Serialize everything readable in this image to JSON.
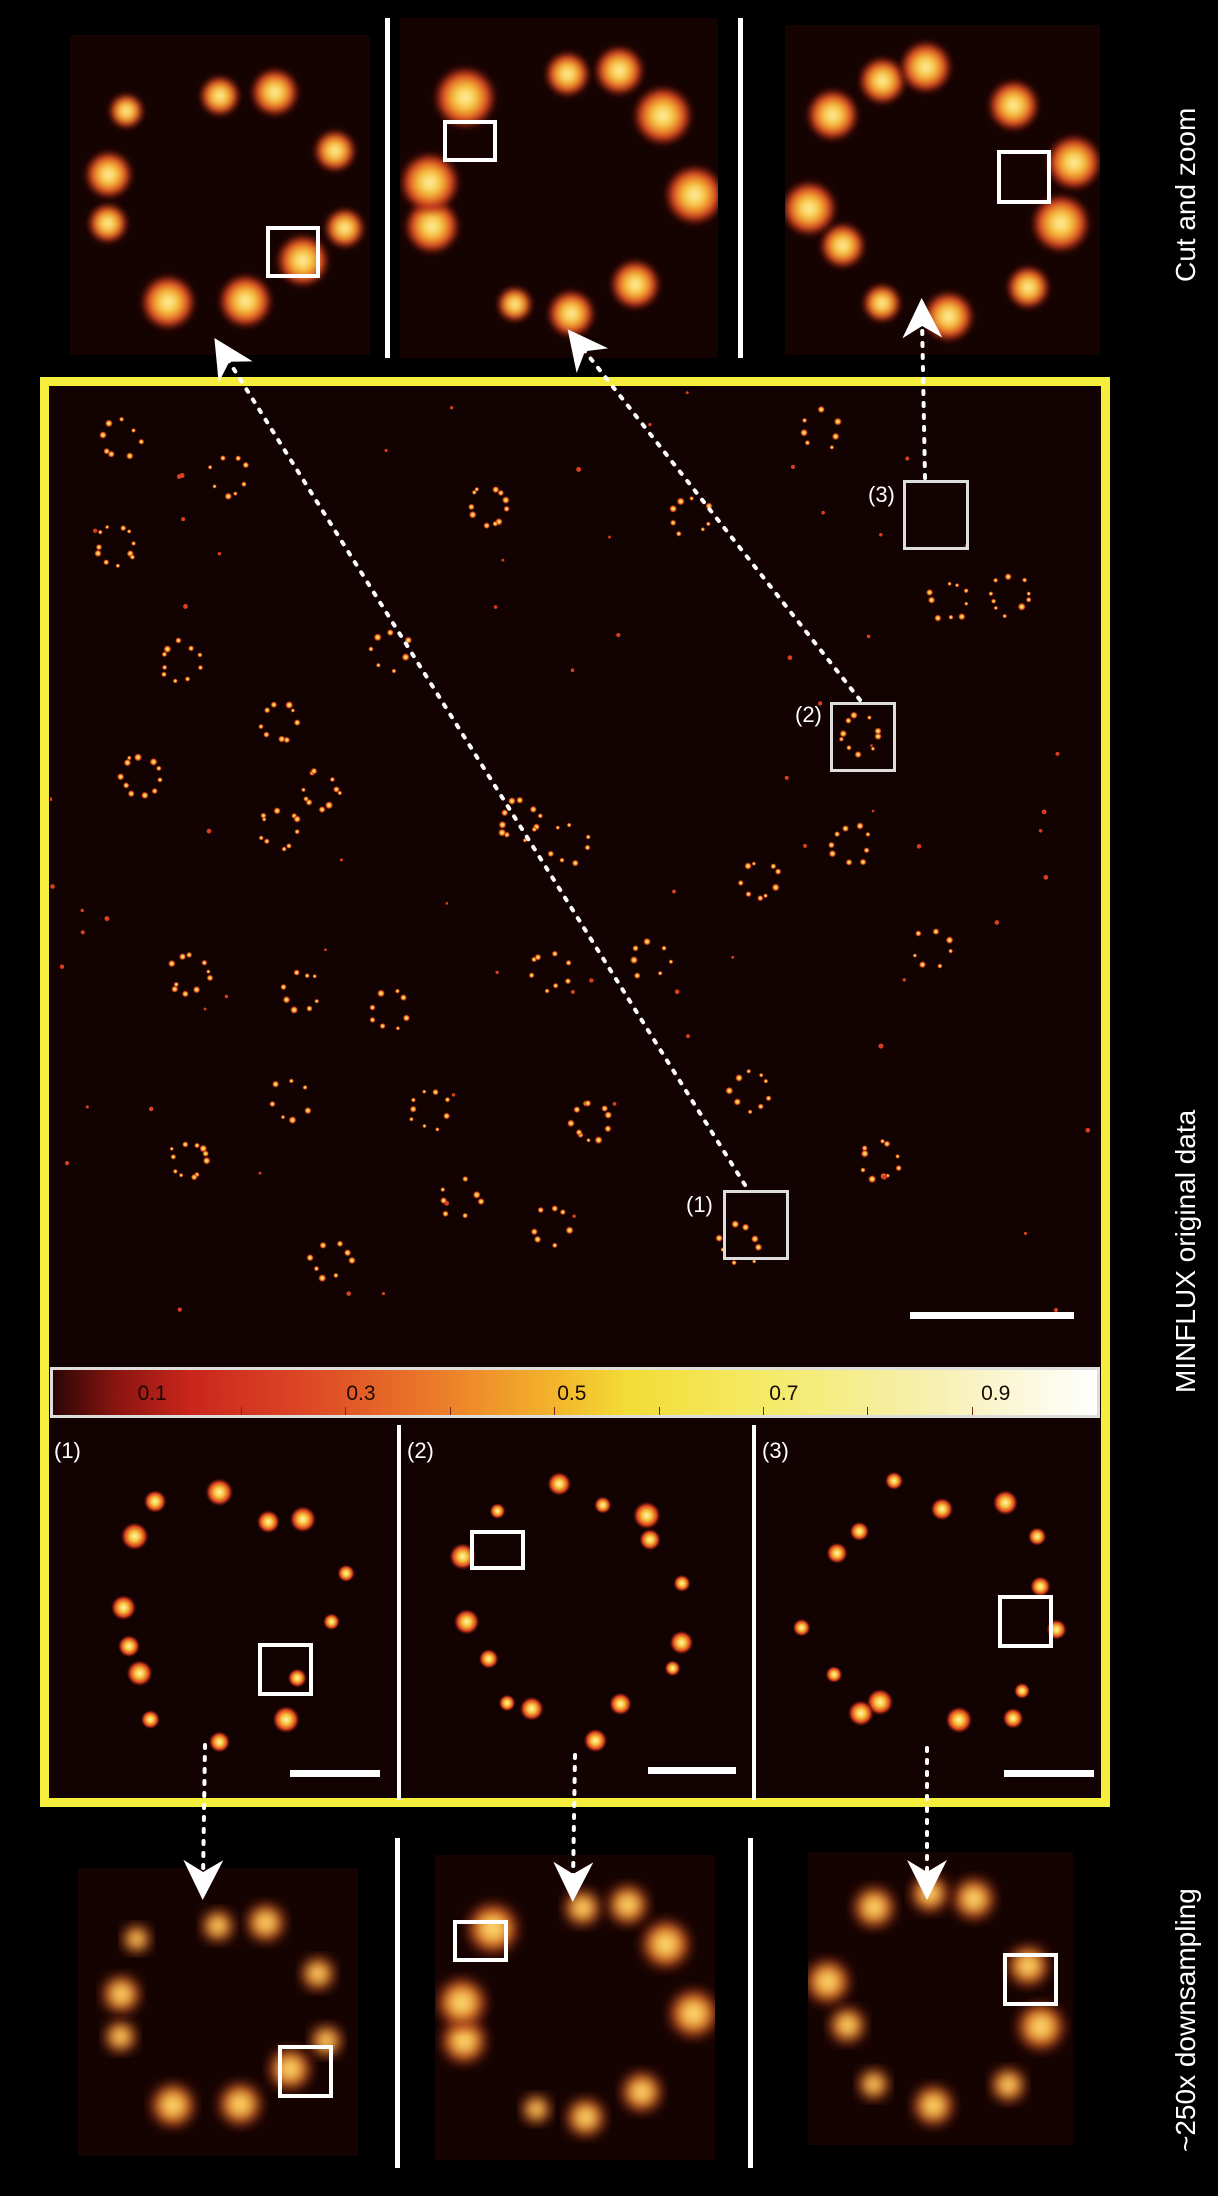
{
  "labels": {
    "top": "Cut and zoom",
    "middle": "MINFLUX original data",
    "bottom": "~250x downsampling"
  },
  "roi_labels": [
    "(1)",
    "(2)",
    "(3)"
  ],
  "colorbar": {
    "tick_labels": [
      "0.1",
      "0.3",
      "0.5",
      "0.7",
      "0.9"
    ]
  },
  "colors": {
    "frame": "#f5ee3c",
    "background": "#000000",
    "blob_core": "#f7e36a",
    "blob_edge": "#c9251c"
  }
}
